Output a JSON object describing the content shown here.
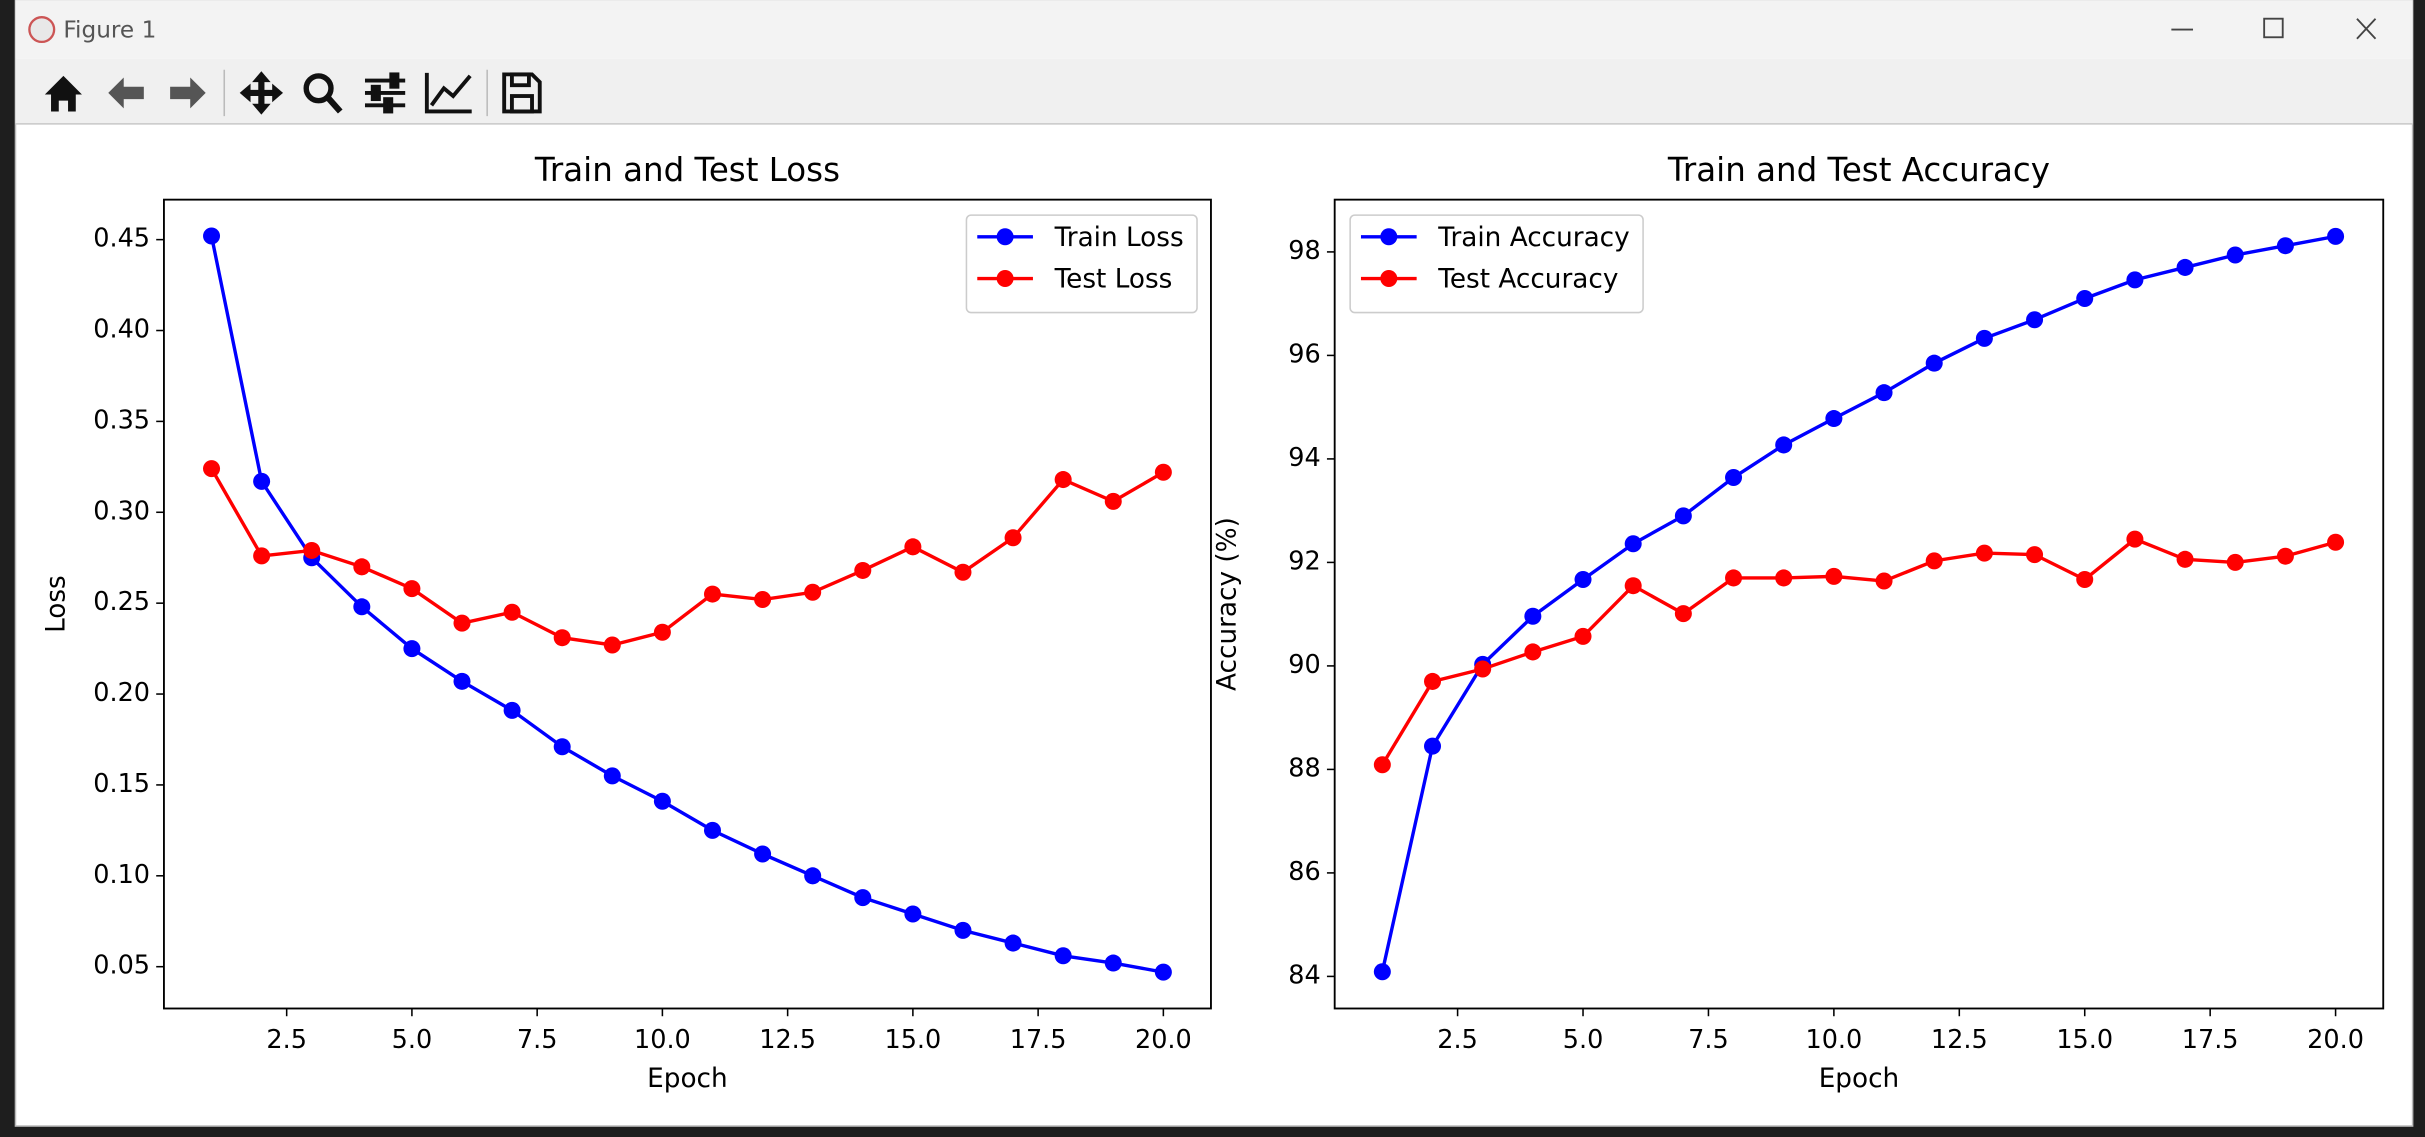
{
  "window": {
    "title": "Figure 1"
  },
  "chart_data": [
    {
      "type": "line",
      "title": "Train and Test Loss",
      "x_label": "Epoch",
      "y_label": "Loss",
      "x": [
        1,
        2,
        3,
        4,
        5,
        6,
        7,
        8,
        9,
        10,
        11,
        12,
        13,
        14,
        15,
        16,
        17,
        18,
        19,
        20
      ],
      "series": [
        {
          "name": "Train Loss",
          "color": "#0000ff",
          "values": [
            0.452,
            0.317,
            0.275,
            0.248,
            0.225,
            0.207,
            0.191,
            0.171,
            0.155,
            0.141,
            0.125,
            0.112,
            0.1,
            0.088,
            0.079,
            0.07,
            0.063,
            0.056,
            0.052,
            0.047
          ]
        },
        {
          "name": "Test Loss",
          "color": "#ff0000",
          "values": [
            0.324,
            0.276,
            0.279,
            0.27,
            0.258,
            0.239,
            0.245,
            0.231,
            0.227,
            0.234,
            0.255,
            0.252,
            0.256,
            0.268,
            0.281,
            0.267,
            0.286,
            0.318,
            0.306,
            0.322
          ]
        }
      ],
      "xlim": [
        0.05,
        20.95
      ],
      "xticks": [
        {
          "value": 2.5,
          "label": "2.5"
        },
        {
          "value": 5,
          "label": "5.0"
        },
        {
          "value": 7.5,
          "label": "7.5"
        },
        {
          "value": 10,
          "label": "10.0"
        },
        {
          "value": 12.5,
          "label": "12.5"
        },
        {
          "value": 15,
          "label": "15.0"
        },
        {
          "value": 17.5,
          "label": "17.5"
        },
        {
          "value": 20,
          "label": "20.0"
        }
      ],
      "ylim": [
        0.027,
        0.472
      ],
      "yticks": [
        {
          "value": 0.05,
          "label": "0.05"
        },
        {
          "value": 0.1,
          "label": "0.10"
        },
        {
          "value": 0.15,
          "label": "0.15"
        },
        {
          "value": 0.2,
          "label": "0.20"
        },
        {
          "value": 0.25,
          "label": "0.25"
        },
        {
          "value": 0.3,
          "label": "0.30"
        },
        {
          "value": 0.35,
          "label": "0.35"
        },
        {
          "value": 0.4,
          "label": "0.40"
        },
        {
          "value": 0.45,
          "label": "0.45"
        }
      ],
      "legend": "upper right"
    },
    {
      "type": "line",
      "title": "Train and Test Accuracy",
      "x_label": "Epoch",
      "y_label": "Accuracy (%)",
      "x": [
        1,
        2,
        3,
        4,
        5,
        6,
        7,
        8,
        9,
        10,
        11,
        12,
        13,
        14,
        15,
        16,
        17,
        18,
        19,
        20
      ],
      "series": [
        {
          "name": "Train Accuracy",
          "color": "#0000ff",
          "values": [
            84.09,
            88.45,
            90.03,
            90.96,
            91.67,
            92.36,
            92.9,
            93.64,
            94.27,
            94.78,
            95.28,
            95.85,
            96.33,
            96.69,
            97.1,
            97.46,
            97.7,
            97.94,
            98.12,
            98.3
          ]
        },
        {
          "name": "Test Accuracy",
          "color": "#ff0000",
          "values": [
            88.09,
            89.7,
            89.94,
            90.27,
            90.57,
            91.55,
            91.01,
            91.7,
            91.7,
            91.73,
            91.64,
            92.03,
            92.18,
            92.15,
            91.67,
            92.45,
            92.06,
            92.0,
            92.12,
            92.39
          ]
        }
      ],
      "xlim": [
        0.05,
        20.95
      ],
      "xticks": [
        {
          "value": 2.5,
          "label": "2.5"
        },
        {
          "value": 5,
          "label": "5.0"
        },
        {
          "value": 7.5,
          "label": "7.5"
        },
        {
          "value": 10,
          "label": "10.0"
        },
        {
          "value": 12.5,
          "label": "12.5"
        },
        {
          "value": 15,
          "label": "15.0"
        },
        {
          "value": 17.5,
          "label": "17.5"
        },
        {
          "value": 20,
          "label": "20.0"
        }
      ],
      "ylim": [
        83.38,
        99.01
      ],
      "yticks": [
        84,
        86,
        88,
        90,
        92,
        94,
        96,
        98
      ],
      "legend": "upper left"
    }
  ]
}
